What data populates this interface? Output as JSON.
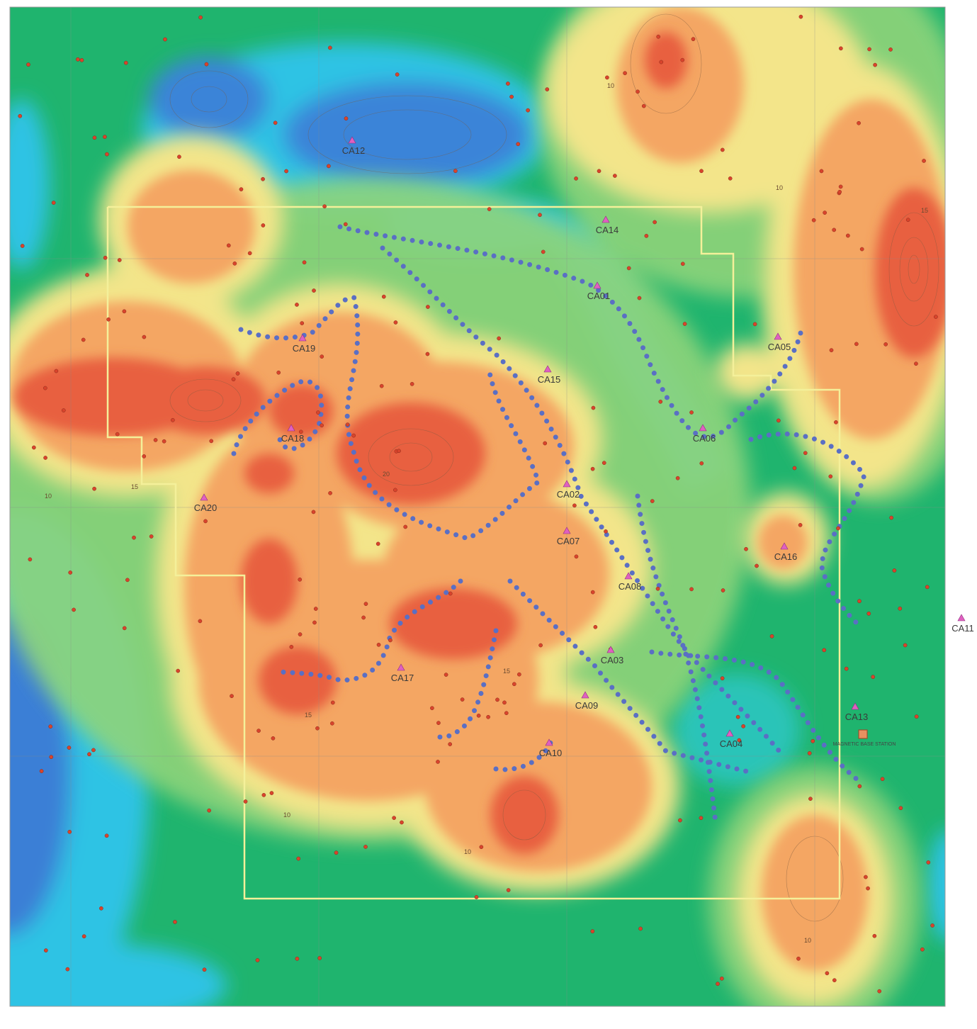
{
  "map": {
    "stations": [
      "CA12",
      "CA14",
      "CA01",
      "CA19",
      "CA05",
      "CA15",
      "CA18",
      "CA06",
      "CA20",
      "CA02",
      "CA07",
      "CA16",
      "CA08",
      "CA11",
      "CA03",
      "CA17",
      "CA09",
      "CA13",
      "CA04",
      "CA10"
    ],
    "base_station": "MAGNETIC BASE STATION",
    "contour_labels": [
      "10",
      "15",
      "20",
      "15",
      "10",
      "10",
      "15",
      "10",
      "10",
      "15",
      "10"
    ]
  }
}
